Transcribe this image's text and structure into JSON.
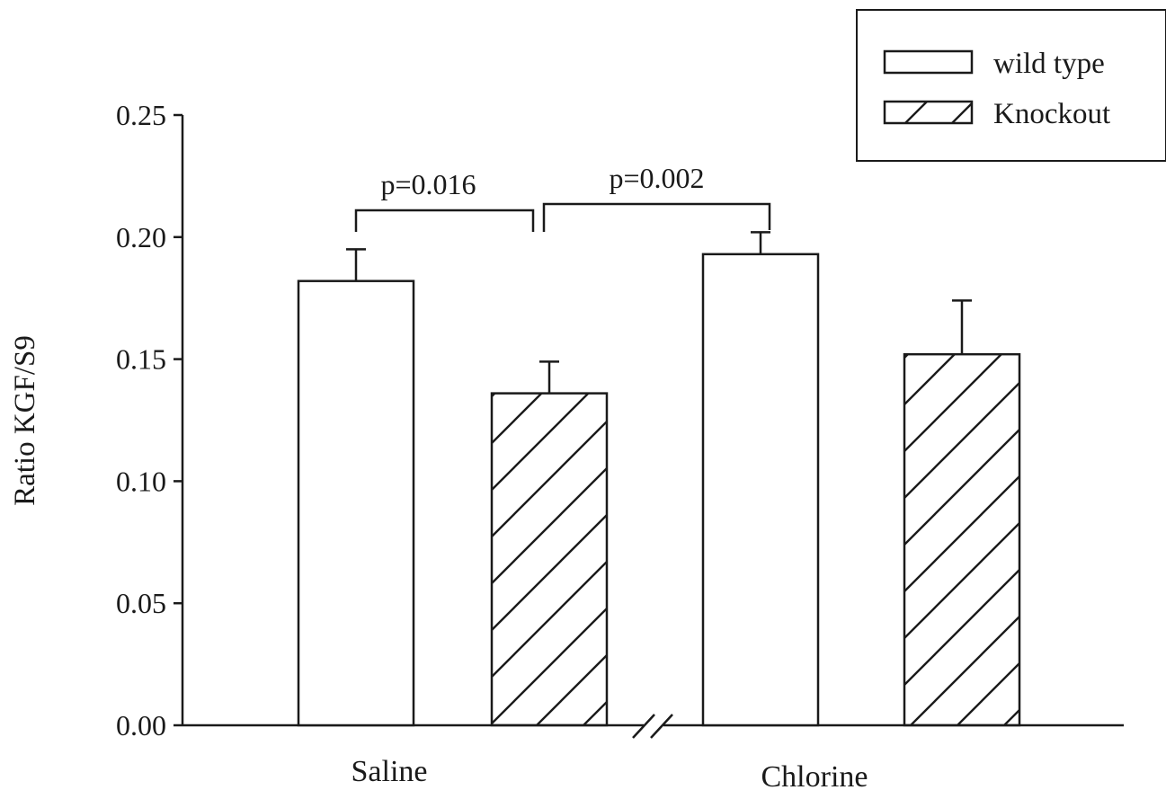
{
  "chart_data": {
    "type": "bar",
    "ylabel": "Ratio KGF/S9",
    "ylim": [
      0,
      0.25
    ],
    "yticks": [
      "0.00",
      "0.05",
      "0.10",
      "0.15",
      "0.20",
      "0.25"
    ],
    "ytick_values": [
      0,
      0.05,
      0.1,
      0.15,
      0.2,
      0.25
    ],
    "categories": [
      "Saline",
      "Chlorine"
    ],
    "axis_break": true,
    "grid": false,
    "legend_position": "top-right",
    "series": [
      {
        "name": "wild type",
        "fill": "none",
        "values": [
          0.182,
          0.193
        ],
        "errors": [
          0.013,
          0.009
        ]
      },
      {
        "name": "Knockout",
        "fill": "hatched",
        "values": [
          0.136,
          0.152
        ],
        "errors": [
          0.013,
          0.022
        ]
      }
    ],
    "annotations": [
      {
        "text": "p=0.016",
        "from": "Saline / wild type",
        "to": "Saline / Knockout"
      },
      {
        "text": "p=0.002",
        "from": "Saline / Knockout",
        "to": "Chlorine / wild type"
      }
    ],
    "colors": {
      "stroke": "#1a1a1a",
      "background": "#ffffff"
    }
  }
}
